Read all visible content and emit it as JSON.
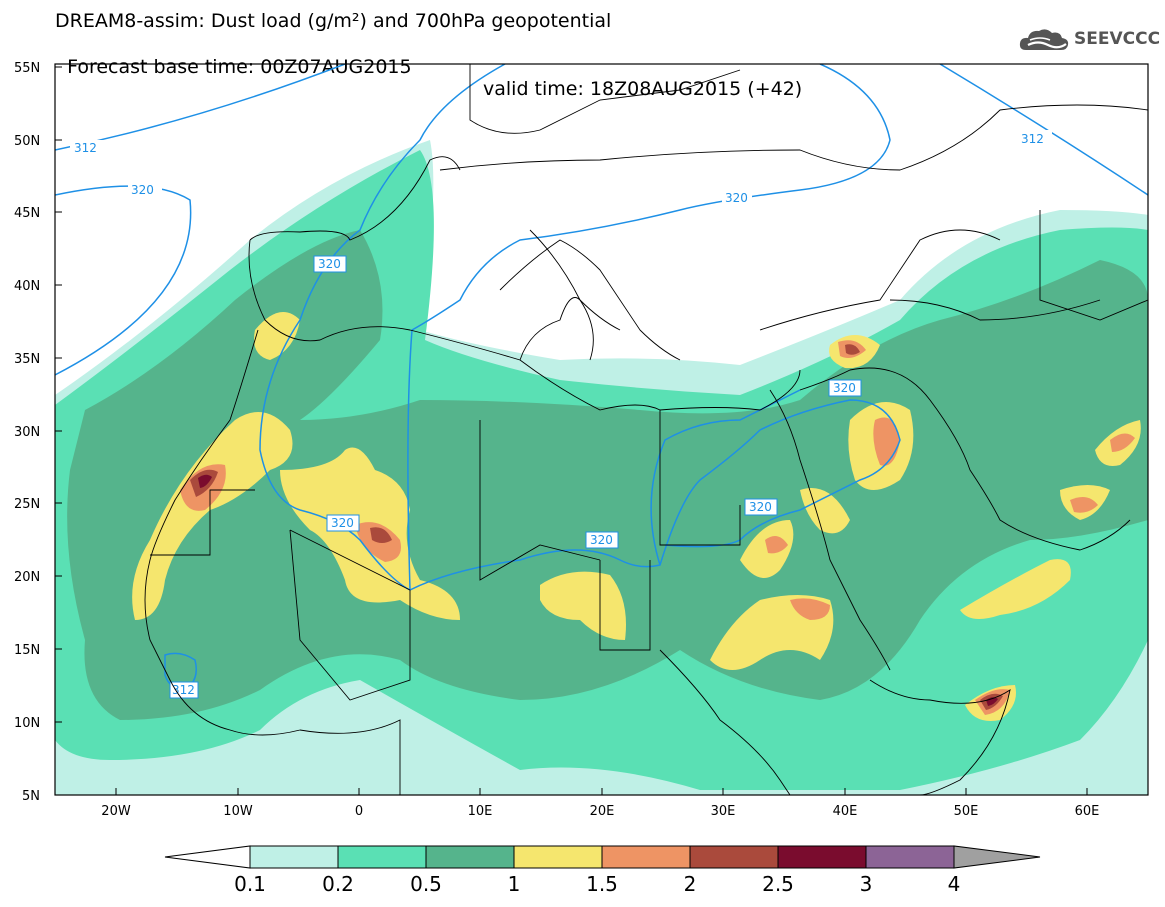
{
  "title": {
    "line1": "DREAM8-assim: Dust load (g/m²) and 700hPa geopotential",
    "line2_base": "Forecast base time: 00Z07AUG2015",
    "line2_valid": "valid time: 18Z08AUG2015 (+42)"
  },
  "logo": {
    "text": "SEEVCCC",
    "icon": "cloud-icon"
  },
  "axes": {
    "lat_labels": [
      "55N",
      "50N",
      "45N",
      "40N",
      "35N",
      "30N",
      "25N",
      "20N",
      "15N",
      "10N",
      "5N"
    ],
    "lon_labels": [
      "20W",
      "10W",
      "0",
      "10E",
      "20E",
      "30E",
      "40E",
      "50E",
      "60E"
    ]
  },
  "contours": {
    "labels": [
      "312",
      "320",
      "312",
      "320",
      "320",
      "320",
      "320",
      "320",
      "312"
    ],
    "color": "#1e90e6"
  },
  "colorbar": {
    "labels": [
      "0.1",
      "0.2",
      "0.5",
      "1",
      "1.5",
      "2",
      "2.5",
      "3",
      "4"
    ],
    "colors": [
      "#ffffff",
      "#bff0e6",
      "#5ae0b4",
      "#55b48c",
      "#f5e66e",
      "#ee9464",
      "#aa4a3c",
      "#7a0c2e",
      "#8c6496",
      "#a0a0a0"
    ]
  }
}
